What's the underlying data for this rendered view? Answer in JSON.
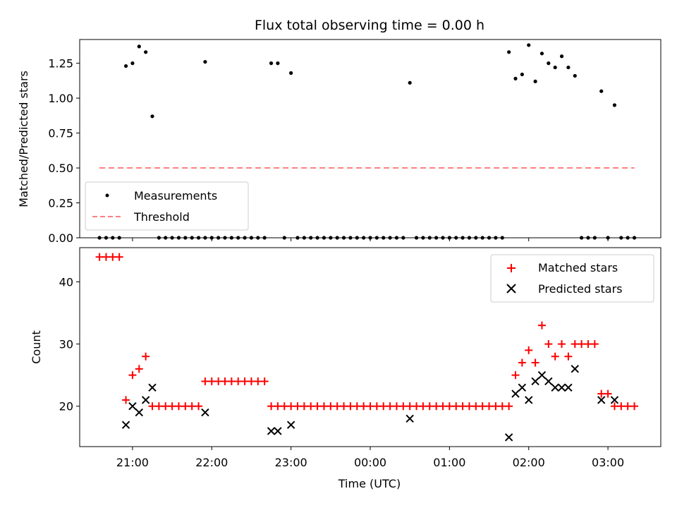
{
  "title": "Flux total observing time = 0.00 h",
  "chart_data": [
    {
      "type": "scatter",
      "panel": "top",
      "ylabel": "Matched/Predicted stars",
      "ylim": [
        0,
        1.42
      ],
      "xlim": [
        "20:20",
        "03:40"
      ],
      "yticks": [
        "0.00",
        "0.25",
        "0.50",
        "0.75",
        "1.00",
        "1.25"
      ],
      "ytick_values": [
        0,
        0.25,
        0.5,
        0.75,
        1.0,
        1.25
      ],
      "legend_position": "lower-left",
      "series": [
        {
          "name": "Measurements",
          "marker": "dot",
          "color": "#000000",
          "points": [
            [
              "20:35",
              0
            ],
            [
              "20:40",
              0
            ],
            [
              "20:45",
              0
            ],
            [
              "20:50",
              0
            ],
            [
              "20:55",
              1.23
            ],
            [
              "21:00",
              1.25
            ],
            [
              "21:05",
              1.37
            ],
            [
              "21:10",
              1.33
            ],
            [
              "21:15",
              0.87
            ],
            [
              "21:20",
              0
            ],
            [
              "21:25",
              0
            ],
            [
              "21:30",
              0
            ],
            [
              "21:35",
              0
            ],
            [
              "21:40",
              0
            ],
            [
              "21:45",
              0
            ],
            [
              "21:50",
              0
            ],
            [
              "21:55",
              0
            ],
            [
              "21:55",
              1.26
            ],
            [
              "22:00",
              0
            ],
            [
              "22:05",
              0
            ],
            [
              "22:10",
              0
            ],
            [
              "22:15",
              0
            ],
            [
              "22:20",
              0
            ],
            [
              "22:25",
              0
            ],
            [
              "22:30",
              0
            ],
            [
              "22:35",
              0
            ],
            [
              "22:40",
              0
            ],
            [
              "22:45",
              1.25
            ],
            [
              "22:50",
              1.25
            ],
            [
              "22:55",
              0
            ],
            [
              "23:00",
              1.18
            ],
            [
              "23:05",
              0
            ],
            [
              "23:10",
              0
            ],
            [
              "23:15",
              0
            ],
            [
              "23:20",
              0
            ],
            [
              "23:25",
              0
            ],
            [
              "23:30",
              0
            ],
            [
              "23:35",
              0
            ],
            [
              "23:40",
              0
            ],
            [
              "23:45",
              0
            ],
            [
              "23:50",
              0
            ],
            [
              "23:55",
              0
            ],
            [
              "00:00",
              0
            ],
            [
              "00:05",
              0
            ],
            [
              "00:10",
              0
            ],
            [
              "00:15",
              0
            ],
            [
              "00:20",
              0
            ],
            [
              "00:25",
              0
            ],
            [
              "00:30",
              1.11
            ],
            [
              "00:35",
              0
            ],
            [
              "00:40",
              0
            ],
            [
              "00:45",
              0
            ],
            [
              "00:50",
              0
            ],
            [
              "00:55",
              0
            ],
            [
              "01:00",
              0
            ],
            [
              "01:05",
              0
            ],
            [
              "01:10",
              0
            ],
            [
              "01:15",
              0
            ],
            [
              "01:20",
              0
            ],
            [
              "01:25",
              0
            ],
            [
              "01:30",
              0
            ],
            [
              "01:35",
              0
            ],
            [
              "01:40",
              0
            ],
            [
              "01:45",
              1.33
            ],
            [
              "01:50",
              1.14
            ],
            [
              "01:55",
              1.17
            ],
            [
              "02:00",
              1.38
            ],
            [
              "02:05",
              1.12
            ],
            [
              "02:10",
              1.32
            ],
            [
              "02:15",
              1.25
            ],
            [
              "02:20",
              1.22
            ],
            [
              "02:25",
              1.3
            ],
            [
              "02:30",
              1.22
            ],
            [
              "02:35",
              1.16
            ],
            [
              "02:40",
              0
            ],
            [
              "02:45",
              0
            ],
            [
              "02:50",
              0
            ],
            [
              "02:55",
              1.05
            ],
            [
              "03:00",
              0
            ],
            [
              "03:05",
              0.95
            ],
            [
              "03:10",
              0
            ],
            [
              "03:15",
              0
            ],
            [
              "03:20",
              0
            ]
          ]
        },
        {
          "name": "Threshold",
          "style": "dashed",
          "color": "#ff8080",
          "x_range": [
            "20:35",
            "03:20"
          ],
          "y": 0.5
        }
      ]
    },
    {
      "type": "scatter",
      "panel": "bottom",
      "xlabel": "Time (UTC)",
      "ylabel": "Count",
      "ylim": [
        13.5,
        45.5
      ],
      "xlim": [
        "20:20",
        "03:40"
      ],
      "yticks": [
        "20",
        "30",
        "40"
      ],
      "ytick_values": [
        20,
        30,
        40
      ],
      "xticks": [
        "21:00",
        "22:00",
        "23:00",
        "00:00",
        "01:00",
        "02:00",
        "03:00"
      ],
      "legend_position": "upper-right",
      "series": [
        {
          "name": "Matched stars",
          "marker": "plus",
          "color": "#ff0000",
          "points": [
            [
              "20:35",
              44
            ],
            [
              "20:40",
              44
            ],
            [
              "20:45",
              44
            ],
            [
              "20:50",
              44
            ],
            [
              "20:55",
              21
            ],
            [
              "21:00",
              25
            ],
            [
              "21:05",
              26
            ],
            [
              "21:10",
              28
            ],
            [
              "21:15",
              20
            ],
            [
              "21:20",
              20
            ],
            [
              "21:25",
              20
            ],
            [
              "21:30",
              20
            ],
            [
              "21:35",
              20
            ],
            [
              "21:40",
              20
            ],
            [
              "21:45",
              20
            ],
            [
              "21:50",
              20
            ],
            [
              "21:55",
              24
            ],
            [
              "22:00",
              24
            ],
            [
              "22:05",
              24
            ],
            [
              "22:10",
              24
            ],
            [
              "22:15",
              24
            ],
            [
              "22:20",
              24
            ],
            [
              "22:25",
              24
            ],
            [
              "22:30",
              24
            ],
            [
              "22:35",
              24
            ],
            [
              "22:40",
              24
            ],
            [
              "22:45",
              20
            ],
            [
              "22:50",
              20
            ],
            [
              "22:55",
              20
            ],
            [
              "23:00",
              20
            ],
            [
              "23:05",
              20
            ],
            [
              "23:10",
              20
            ],
            [
              "23:15",
              20
            ],
            [
              "23:20",
              20
            ],
            [
              "23:25",
              20
            ],
            [
              "23:30",
              20
            ],
            [
              "23:35",
              20
            ],
            [
              "23:40",
              20
            ],
            [
              "23:45",
              20
            ],
            [
              "23:50",
              20
            ],
            [
              "23:55",
              20
            ],
            [
              "00:00",
              20
            ],
            [
              "00:05",
              20
            ],
            [
              "00:10",
              20
            ],
            [
              "00:15",
              20
            ],
            [
              "00:20",
              20
            ],
            [
              "00:25",
              20
            ],
            [
              "00:30",
              20
            ],
            [
              "00:35",
              20
            ],
            [
              "00:40",
              20
            ],
            [
              "00:45",
              20
            ],
            [
              "00:50",
              20
            ],
            [
              "00:55",
              20
            ],
            [
              "01:00",
              20
            ],
            [
              "01:05",
              20
            ],
            [
              "01:10",
              20
            ],
            [
              "01:15",
              20
            ],
            [
              "01:20",
              20
            ],
            [
              "01:25",
              20
            ],
            [
              "01:30",
              20
            ],
            [
              "01:35",
              20
            ],
            [
              "01:40",
              20
            ],
            [
              "01:45",
              20
            ],
            [
              "01:50",
              25
            ],
            [
              "01:55",
              27
            ],
            [
              "02:00",
              29
            ],
            [
              "02:05",
              27
            ],
            [
              "02:10",
              33
            ],
            [
              "02:15",
              30
            ],
            [
              "02:20",
              28
            ],
            [
              "02:25",
              30
            ],
            [
              "02:30",
              28
            ],
            [
              "02:35",
              30
            ],
            [
              "02:40",
              30
            ],
            [
              "02:45",
              30
            ],
            [
              "02:50",
              30
            ],
            [
              "02:55",
              22
            ],
            [
              "03:00",
              22
            ],
            [
              "03:05",
              20
            ],
            [
              "03:10",
              20
            ],
            [
              "03:15",
              20
            ],
            [
              "03:20",
              20
            ]
          ]
        },
        {
          "name": "Predicted stars",
          "marker": "x",
          "color": "#000000",
          "points": [
            [
              "20:55",
              17
            ],
            [
              "21:00",
              20
            ],
            [
              "21:05",
              19
            ],
            [
              "21:10",
              21
            ],
            [
              "21:15",
              23
            ],
            [
              "21:55",
              19
            ],
            [
              "22:45",
              16
            ],
            [
              "22:50",
              16
            ],
            [
              "23:00",
              17
            ],
            [
              "00:30",
              18
            ],
            [
              "01:45",
              15
            ],
            [
              "01:50",
              22
            ],
            [
              "01:55",
              23
            ],
            [
              "02:00",
              21
            ],
            [
              "02:05",
              24
            ],
            [
              "02:10",
              25
            ],
            [
              "02:15",
              24
            ],
            [
              "02:20",
              23
            ],
            [
              "02:25",
              23
            ],
            [
              "02:30",
              23
            ],
            [
              "02:35",
              26
            ],
            [
              "02:55",
              21
            ],
            [
              "03:05",
              21
            ]
          ]
        }
      ]
    }
  ]
}
